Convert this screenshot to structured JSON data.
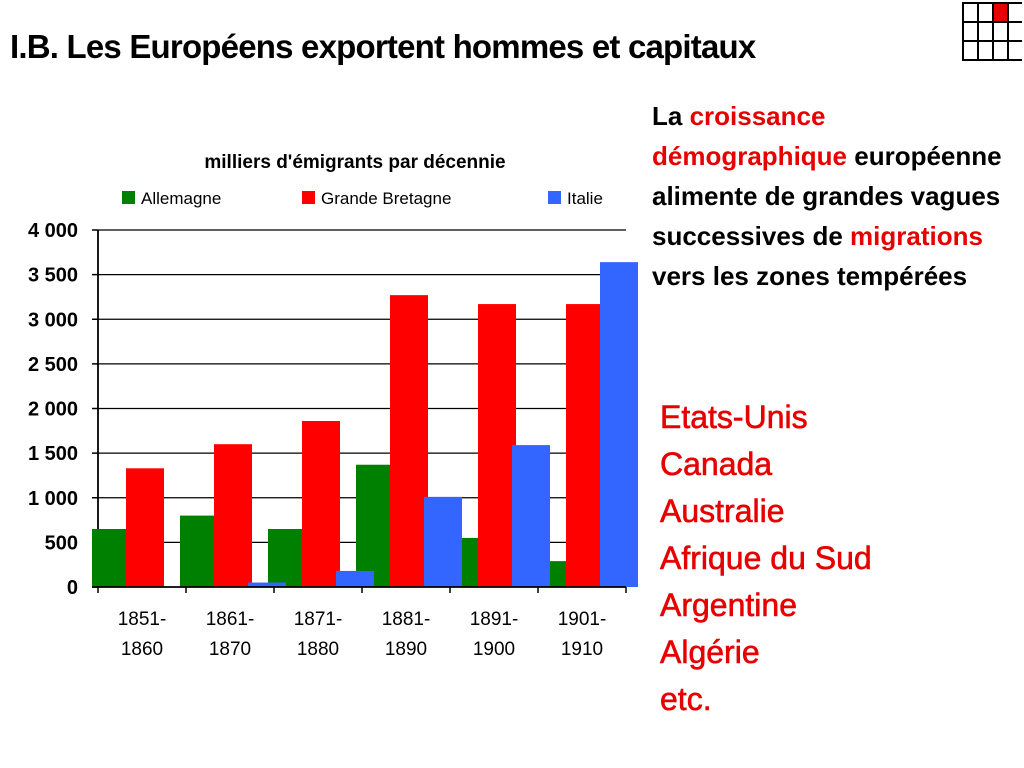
{
  "slide": {
    "title": "I.B. Les Européens exportent hommes et capitaux"
  },
  "side_text": {
    "part1": "La ",
    "part2": "croissance démographique",
    "part3": " européenne alimente de grandes vagues successives de ",
    "part4": "migrations",
    "part5": " vers les zones tempérées"
  },
  "destinations": [
    "Etats-Unis",
    "Canada",
    "Australie",
    "Afrique du Sud",
    "Argentine",
    "Algérie",
    "etc."
  ],
  "colors": {
    "allemagne": "#008000",
    "grande_bretagne": "#ff0000",
    "italie": "#3366ff",
    "accent_red": "#e60000",
    "logo_red": "#e60000"
  },
  "chart_data": {
    "type": "bar",
    "title": "milliers d'émigrants par décennie",
    "categories": [
      "1851-1860",
      "1861-1870",
      "1871-1880",
      "1881-1890",
      "1891-1900",
      "1901-1910"
    ],
    "category_lines": [
      [
        "1851-",
        "1860"
      ],
      [
        "1861-",
        "1870"
      ],
      [
        "1871-",
        "1880"
      ],
      [
        "1881-",
        "1890"
      ],
      [
        "1891-",
        "1900"
      ],
      [
        "1901-",
        "1910"
      ]
    ],
    "series": [
      {
        "name": "Allemagne",
        "color": "#008000",
        "values": [
          650,
          800,
          650,
          1370,
          550,
          290
        ]
      },
      {
        "name": "Grande Bretagne",
        "color": "#ff0000",
        "values": [
          1330,
          1600,
          1860,
          3270,
          3170,
          3170
        ]
      },
      {
        "name": "Italie",
        "color": "#3366ff",
        "values": [
          0,
          50,
          180,
          1010,
          1590,
          3640
        ]
      }
    ],
    "ylim": [
      0,
      4000
    ],
    "yticks": [
      0,
      500,
      1000,
      1500,
      2000,
      2500,
      3000,
      3500,
      4000
    ],
    "ytick_labels": [
      "0",
      "500",
      "1 000",
      "1 500",
      "2 000",
      "2 500",
      "3 000",
      "3 500",
      "4 000"
    ],
    "grid": true,
    "legend_position": "top"
  }
}
